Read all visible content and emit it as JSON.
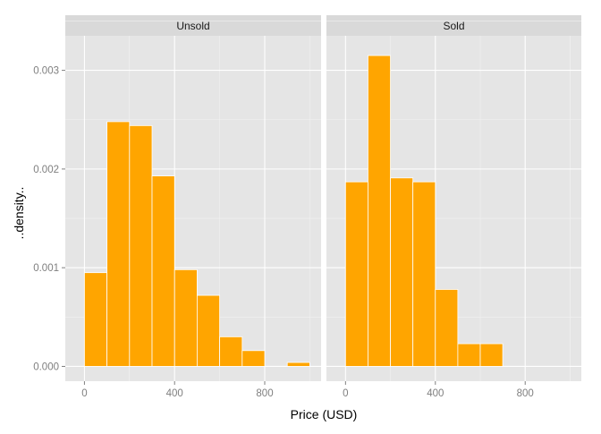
{
  "chart_data": {
    "type": "histogram",
    "xlabel": "Price (USD)",
    "ylabel": "..density..",
    "xlim": [
      -85,
      1050
    ],
    "ylim": [
      -0.00015,
      0.00335
    ],
    "x_ticks": [
      0,
      400,
      800
    ],
    "x_tick_labels": [
      "0",
      "400",
      "800"
    ],
    "y_ticks": [
      0,
      0.001,
      0.002,
      0.003
    ],
    "y_tick_labels": [
      "0.000",
      "0.001",
      "0.002",
      "0.003"
    ],
    "bar_color": "#ffa500",
    "panel_color": "#e5e5e5",
    "strip_color": "#d9d9d9",
    "grid": true,
    "bin_width": 100,
    "facets": [
      {
        "label": "Unsold",
        "bins": [
          {
            "x0": 0,
            "x1": 100,
            "density": 0.00095
          },
          {
            "x0": 100,
            "x1": 200,
            "density": 0.00248
          },
          {
            "x0": 200,
            "x1": 300,
            "density": 0.00244
          },
          {
            "x0": 300,
            "x1": 400,
            "density": 0.00193
          },
          {
            "x0": 400,
            "x1": 500,
            "density": 0.00098
          },
          {
            "x0": 500,
            "x1": 600,
            "density": 0.00072
          },
          {
            "x0": 600,
            "x1": 700,
            "density": 0.0003
          },
          {
            "x0": 700,
            "x1": 800,
            "density": 0.00016
          },
          {
            "x0": 800,
            "x1": 900,
            "density": 0.0
          },
          {
            "x0": 900,
            "x1": 1000,
            "density": 4e-05
          }
        ]
      },
      {
        "label": "Sold",
        "bins": [
          {
            "x0": 0,
            "x1": 100,
            "density": 0.00187
          },
          {
            "x0": 100,
            "x1": 200,
            "density": 0.00315
          },
          {
            "x0": 200,
            "x1": 300,
            "density": 0.00191
          },
          {
            "x0": 300,
            "x1": 400,
            "density": 0.00187
          },
          {
            "x0": 400,
            "x1": 500,
            "density": 0.00078
          },
          {
            "x0": 500,
            "x1": 600,
            "density": 0.00023
          },
          {
            "x0": 600,
            "x1": 700,
            "density": 0.00023
          }
        ]
      }
    ]
  }
}
